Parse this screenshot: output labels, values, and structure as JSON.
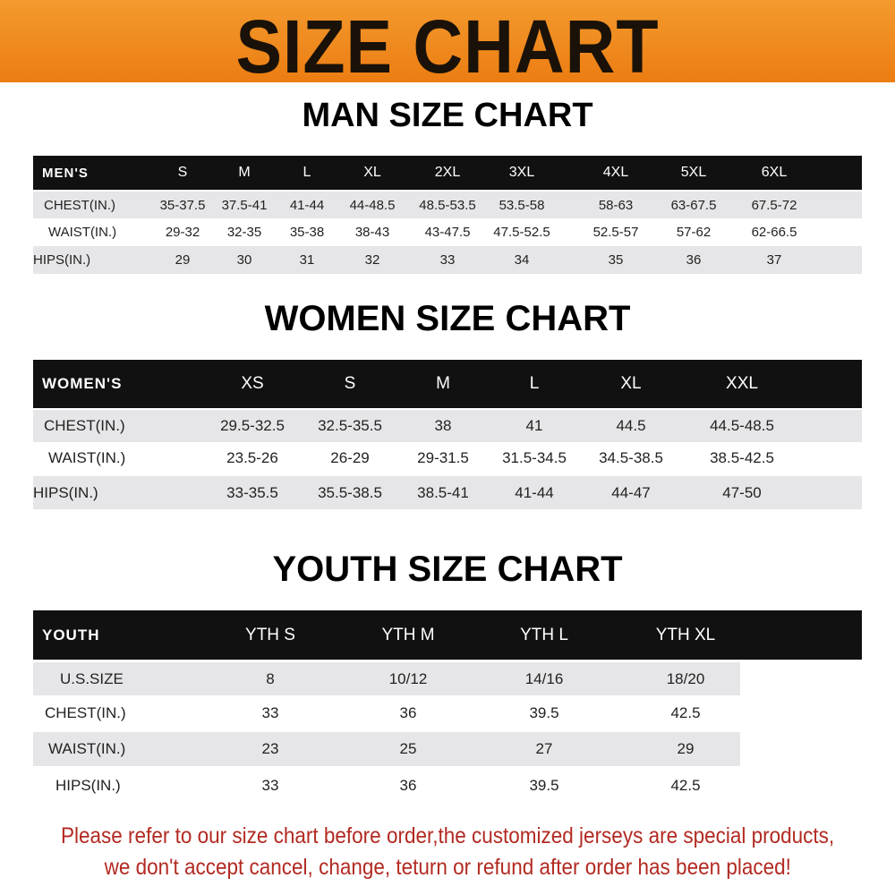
{
  "banner": {
    "title": "SIZE CHART",
    "background": "#ee8518"
  },
  "men": {
    "title": "MAN SIZE CHART",
    "header": [
      "MEN'S",
      "S",
      "M",
      "L",
      "XL",
      "2XL",
      "3XL",
      "4XL",
      "5XL",
      "6XL"
    ],
    "rows": [
      [
        "CHEST(IN.)",
        "35-37.5",
        "37.5-41",
        "41-44",
        "44-48.5",
        "48.5-53.5",
        "53.5-58",
        "58-63",
        "63-67.5",
        "67.5-72"
      ],
      [
        "WAIST(IN.)",
        "29-32",
        "32-35",
        "35-38",
        "38-43",
        "43-47.5",
        "47.5-52.5",
        "52.5-57",
        "57-62",
        "62-66.5"
      ],
      [
        "HIPS(IN.)",
        "29",
        "30",
        "31",
        "32",
        "33",
        "34",
        "35",
        "36",
        "37"
      ]
    ]
  },
  "women": {
    "title": "WOMEN SIZE CHART",
    "header": [
      "WOMEN'S",
      "XS",
      "S",
      "M",
      "L",
      "XL",
      "XXL"
    ],
    "rows": [
      [
        "CHEST(IN.)",
        "29.5-32.5",
        "32.5-35.5",
        "38",
        "41",
        "44.5",
        "44.5-48.5"
      ],
      [
        "WAIST(IN.)",
        "23.5-26",
        "26-29",
        "29-31.5",
        "31.5-34.5",
        "34.5-38.5",
        "38.5-42.5"
      ],
      [
        "HIPS(IN.)",
        "33-35.5",
        "35.5-38.5",
        "38.5-41",
        "41-44",
        "44-47",
        "47-50"
      ]
    ]
  },
  "youth": {
    "title": "YOUTH SIZE CHART",
    "header": [
      "YOUTH",
      "YTH S",
      "YTH M",
      "YTH L",
      "YTH XL"
    ],
    "rows": [
      [
        "U.S.SIZE",
        "8",
        "10/12",
        "14/16",
        "18/20"
      ],
      [
        "CHEST(IN.)",
        "33",
        "36",
        "39.5",
        "42.5"
      ],
      [
        "WAIST(IN.)",
        "23",
        "25",
        "27",
        "29"
      ],
      [
        "HIPS(IN.)",
        "33",
        "36",
        "39.5",
        "42.5"
      ]
    ]
  },
  "footer": {
    "line1": "Please refer to our size chart before order,the customized jerseys are special products,",
    "line2": "we don't accept cancel, change, teturn or refund after order has been placed!",
    "color": "#b22a22"
  }
}
